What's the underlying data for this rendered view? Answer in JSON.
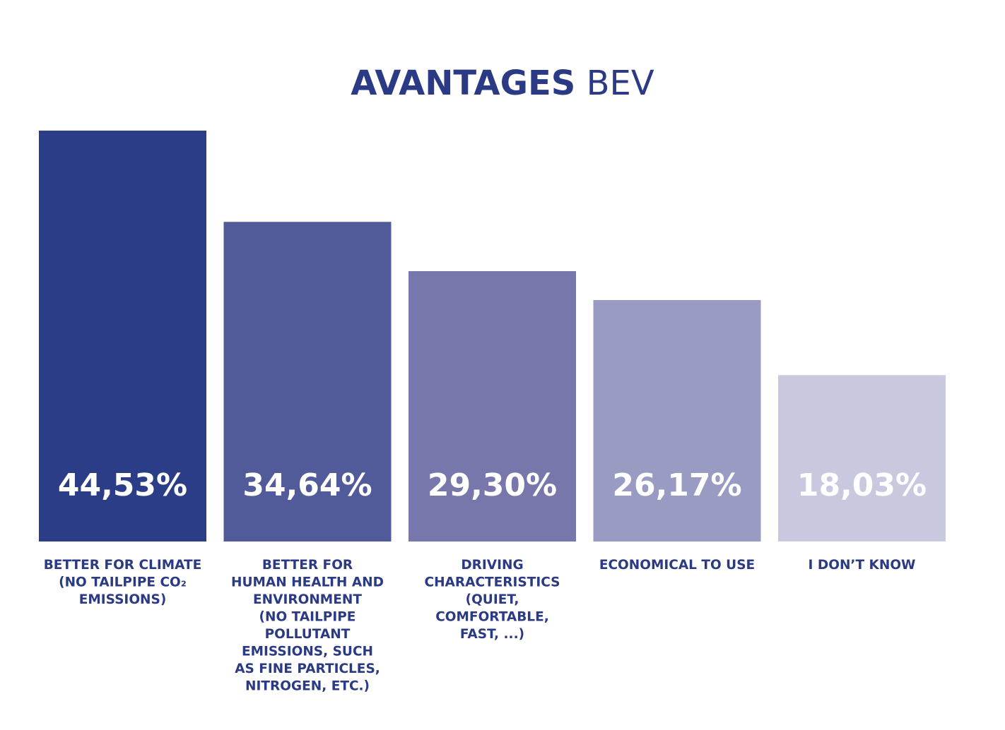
{
  "title": {
    "bold": "AVANTAGES",
    "light": "BEV"
  },
  "colors": {
    "text": "#2b3a84",
    "bars": [
      "#2b3d87",
      "#525b9a",
      "#7777ab",
      "#9a9bc2",
      "#c8c9de"
    ]
  },
  "chart_data": {
    "type": "bar",
    "title": "AVANTAGES BEV",
    "xlabel": "",
    "ylabel": "",
    "ylim": [
      0,
      50
    ],
    "grid": false,
    "categories": [
      "BETTER FOR CLIMATE (NO TAILPIPE CO2 EMISSIONS)",
      "BETTER FOR HUMAN HEALTH AND ENVIRONMENT (NO TAILPIPE POLLUTANT EMISSIONS, SUCH AS FINE PARTICLES, NITROGEN, ETC.)",
      "DRIVING CHARACTERISTICS (QUIET, COMFORTABLE, FAST, ...)",
      "ECONOMICAL TO USE",
      "I DON’T KNOW"
    ],
    "category_lines": [
      [
        "BETTER FOR CLIMATE",
        "(NO TAILPIPE CO₂",
        "EMISSIONS)"
      ],
      [
        "BETTER FOR",
        "HUMAN HEALTH AND",
        "ENVIRONMENT",
        "(NO TAILPIPE",
        "POLLUTANT",
        "EMISSIONS, SUCH",
        "AS FINE PARTICLES,",
        "NITROGEN, ETC.)"
      ],
      [
        "DRIVING",
        "CHARACTERISTICS",
        "(QUIET,",
        "COMFORTABLE,",
        "FAST, ...)"
      ],
      [
        "ECONOMICAL TO USE"
      ],
      [
        "I DON’T KNOW"
      ]
    ],
    "values": [
      44.53,
      34.64,
      29.3,
      26.17,
      18.03
    ],
    "value_labels": [
      "44,53%",
      "34,64%",
      "29,30%",
      "26,17%",
      "18,03%"
    ]
  }
}
